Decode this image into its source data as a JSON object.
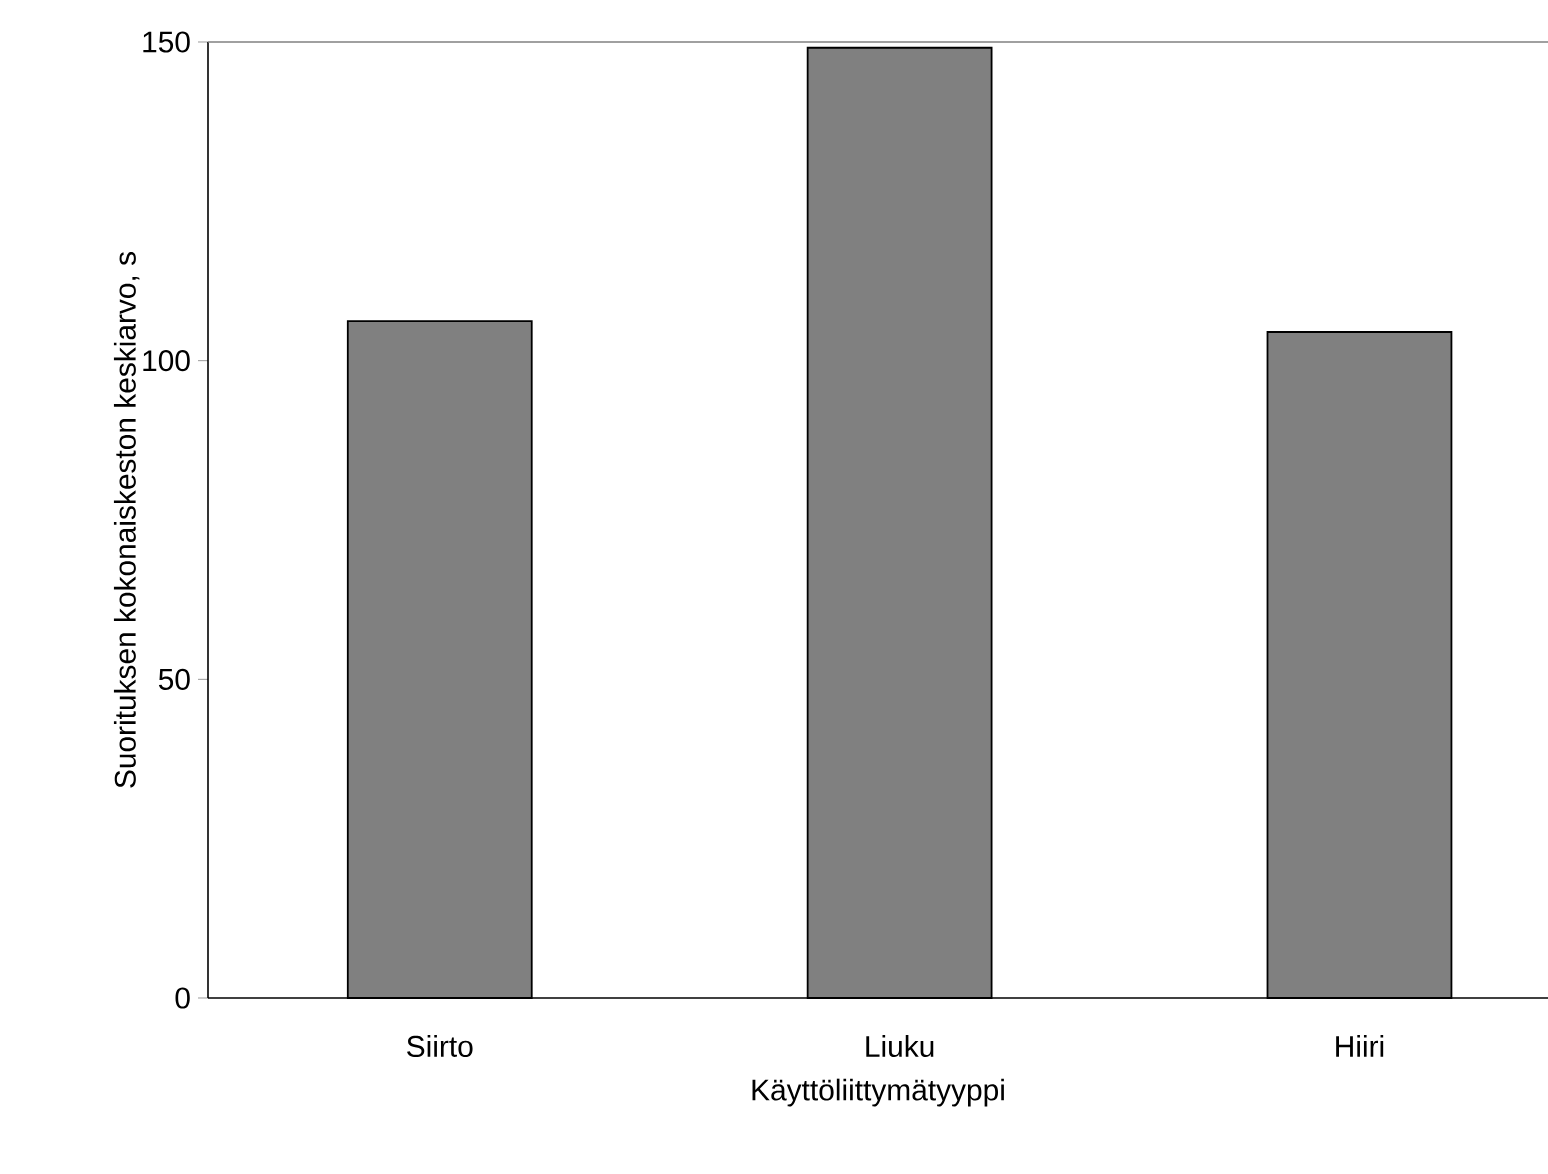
{
  "chart_data": {
    "type": "bar",
    "xlabel": "Käyttöliittymätyyppi",
    "ylabel": "Suorituksen kokonaiskeston keskiarvo, s",
    "categories": [
      "Siirto",
      "Liuku",
      "Hiiri"
    ],
    "values": [
      106.2,
      149.1,
      104.5
    ],
    "color": "#808080",
    "ylim": [
      0,
      150
    ],
    "yticks": [
      0,
      50,
      100,
      150
    ]
  }
}
